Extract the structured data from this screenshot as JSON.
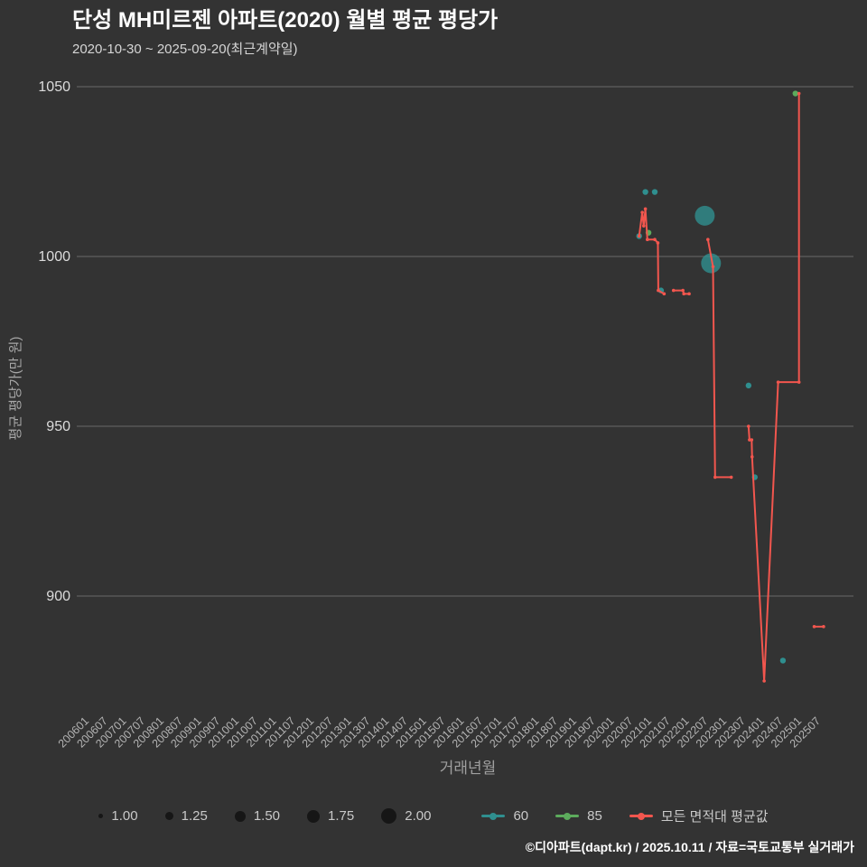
{
  "header": {
    "title": "단성 MH미르젠 아파트(2020) 월별 평균 평당가",
    "subtitle": "2020-10-30 ~ 2025-09-20(최근계약일)"
  },
  "footer": {
    "credit": "©디아파트(dapt.kr) / 2025.10.11 / 자료=국토교통부 실거래가"
  },
  "chart_data": {
    "type": "scatter",
    "title": "단성 MH미르젠 아파트(2020) 월별 평균 평당가",
    "subtitle": "2020-10-30 ~ 2025-09-20(최근계약일)",
    "xlabel": "거래년월",
    "ylabel": "평균 평당가(만 원)",
    "yticks": [
      1050,
      1000,
      950,
      900
    ],
    "ylim": [
      870,
      1055
    ],
    "grid": true,
    "legend_position": "bottom",
    "xticks": [
      "200601",
      "200607",
      "200701",
      "200707",
      "200801",
      "200807",
      "200901",
      "200907",
      "201001",
      "201007",
      "201101",
      "201107",
      "201201",
      "201207",
      "201301",
      "201307",
      "201401",
      "201407",
      "201501",
      "201507",
      "201601",
      "201607",
      "201701",
      "201707",
      "201801",
      "201807",
      "201901",
      "201907",
      "202001",
      "202007",
      "202101",
      "202107",
      "202201",
      "202207",
      "202301",
      "202307",
      "202401",
      "202407",
      "202501",
      "202507"
    ],
    "size_legend": [
      "1.00",
      "1.25",
      "1.50",
      "1.75",
      "2.00"
    ],
    "series": [
      {
        "name": "60",
        "type": "scatter",
        "color": "#2f8f8f",
        "points": [
          [
            "2020-10",
            1006,
            1
          ],
          [
            "2020-12",
            1019,
            1
          ],
          [
            "2021-03",
            1019,
            1
          ],
          [
            "2021-05",
            990,
            1
          ],
          [
            "2022-07",
            1012,
            2
          ],
          [
            "2022-09",
            998,
            2
          ],
          [
            "2023-09",
            962,
            1
          ],
          [
            "2023-11",
            935,
            1
          ],
          [
            "2024-08",
            881,
            1
          ]
        ]
      },
      {
        "name": "85",
        "type": "scatter",
        "color": "#5cab5c",
        "points": [
          [
            "2021-01",
            1007,
            1
          ],
          [
            "2024-12",
            1048,
            1
          ]
        ]
      },
      {
        "name": "모든 면적대 평균값",
        "type": "line",
        "color": "#f2564e",
        "segments": [
          [
            [
              "2020-10",
              1006
            ],
            [
              "2020-11",
              1013
            ],
            [
              "2020-11-15",
              1009
            ],
            [
              "2020-12",
              1014
            ],
            [
              "2020-12-20",
              1005
            ],
            [
              "2021-03",
              1005
            ],
            [
              "2021-04",
              1004
            ],
            [
              "2021-04-05",
              990
            ],
            [
              "2021-06",
              989
            ]
          ],
          [
            [
              "2021-09",
              990
            ],
            [
              "2021-12",
              990
            ],
            [
              "2021-12-10",
              989
            ],
            [
              "2022-02",
              989
            ]
          ],
          [
            [
              "2022-08",
              1005
            ],
            [
              "2022-09-20",
              997
            ],
            [
              "2022-10-10",
              935
            ],
            [
              "2023-03-15",
              935
            ]
          ],
          [
            [
              "2023-09",
              950
            ],
            [
              "2023-09-10",
              946
            ],
            [
              "2023-10",
              946
            ],
            [
              "2023-10-05",
              941
            ],
            [
              "2024-02",
              875
            ],
            [
              "2024-06-15",
              963
            ],
            [
              "2025-01-05",
              963
            ],
            [
              "2025-01-05",
              1048
            ]
          ],
          [
            [
              "2025-06",
              891
            ],
            [
              "2025-09",
              891
            ]
          ]
        ]
      }
    ]
  }
}
